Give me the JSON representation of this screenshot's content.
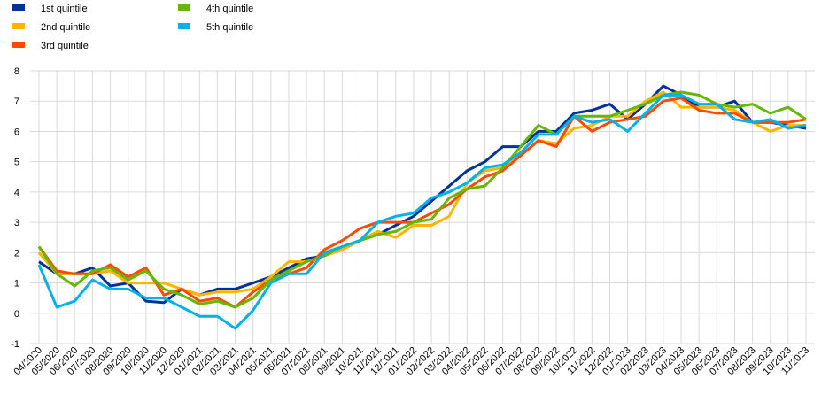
{
  "chart_data": {
    "type": "line",
    "categories": [
      "04/2020",
      "05/2020",
      "06/2020",
      "07/2020",
      "08/2020",
      "09/2020",
      "10/2020",
      "11/2020",
      "12/2020",
      "01/2021",
      "02/2021",
      "03/2021",
      "04/2021",
      "05/2021",
      "06/2021",
      "07/2021",
      "08/2021",
      "09/2021",
      "10/2021",
      "11/2021",
      "12/2021",
      "01/2022",
      "02/2022",
      "03/2022",
      "04/2022",
      "05/2022",
      "06/2022",
      "07/2022",
      "08/2022",
      "09/2022",
      "10/2022",
      "11/2022",
      "12/2022",
      "01/2023",
      "02/2023",
      "03/2023",
      "04/2023",
      "05/2023",
      "06/2023",
      "07/2023",
      "08/2023",
      "09/2023",
      "10/2023",
      "11/2023"
    ],
    "series": [
      {
        "name": "1st quintile",
        "color": "#003299",
        "values": [
          1.7,
          1.3,
          1.3,
          1.5,
          0.9,
          1.0,
          0.4,
          0.35,
          0.8,
          0.6,
          0.8,
          0.8,
          1.0,
          1.2,
          1.5,
          1.8,
          1.9,
          2.1,
          2.4,
          2.6,
          2.9,
          3.2,
          3.7,
          4.2,
          4.7,
          5.0,
          5.5,
          5.5,
          6.0,
          6.0,
          6.6,
          6.7,
          6.9,
          6.4,
          6.9,
          7.5,
          7.2,
          6.8,
          6.8,
          7.0,
          6.3,
          6.3,
          6.2,
          6.1
        ]
      },
      {
        "name": "2nd quintile",
        "color": "#ffb400",
        "values": [
          2.0,
          1.3,
          1.3,
          1.3,
          1.4,
          1.0,
          1.0,
          1.0,
          0.8,
          0.6,
          0.7,
          0.7,
          0.8,
          1.2,
          1.7,
          1.7,
          1.9,
          2.1,
          2.4,
          2.7,
          2.5,
          2.9,
          2.9,
          3.2,
          4.3,
          4.7,
          4.8,
          5.2,
          5.7,
          5.6,
          6.1,
          6.2,
          6.5,
          6.5,
          7.0,
          7.3,
          6.8,
          6.8,
          6.8,
          6.7,
          6.3,
          6.0,
          6.2,
          6.2
        ]
      },
      {
        "name": "3rd quintile",
        "color": "#ff4b00",
        "values": [
          2.2,
          1.4,
          1.3,
          1.3,
          1.6,
          1.2,
          1.5,
          0.6,
          0.8,
          0.4,
          0.5,
          0.2,
          0.7,
          1.1,
          1.3,
          1.5,
          2.1,
          2.4,
          2.8,
          3.0,
          3.0,
          3.0,
          3.3,
          3.6,
          4.1,
          4.5,
          4.7,
          5.2,
          5.7,
          5.5,
          6.5,
          6.0,
          6.3,
          6.4,
          6.5,
          7.0,
          7.1,
          6.7,
          6.6,
          6.6,
          6.3,
          6.3,
          6.3,
          6.4
        ]
      },
      {
        "name": "4th quintile",
        "color": "#65b800",
        "values": [
          2.2,
          1.3,
          0.9,
          1.4,
          1.5,
          1.1,
          1.4,
          0.8,
          0.6,
          0.3,
          0.4,
          0.2,
          0.5,
          1.1,
          1.4,
          1.7,
          1.9,
          2.2,
          2.4,
          2.6,
          2.7,
          3.0,
          3.1,
          3.8,
          4.1,
          4.2,
          4.8,
          5.5,
          6.2,
          5.9,
          6.5,
          6.5,
          6.5,
          6.7,
          6.9,
          7.2,
          7.3,
          7.2,
          6.9,
          6.8,
          6.9,
          6.6,
          6.8,
          6.4
        ]
      },
      {
        "name": "5th quintile",
        "color": "#00b1ea",
        "values": [
          1.6,
          0.2,
          0.4,
          1.1,
          0.8,
          0.8,
          0.5,
          0.5,
          0.2,
          -0.1,
          -0.1,
          -0.5,
          0.1,
          1.0,
          1.3,
          1.3,
          2.0,
          2.2,
          2.4,
          3.0,
          3.2,
          3.3,
          3.8,
          4.0,
          4.3,
          4.8,
          4.9,
          5.3,
          5.9,
          5.9,
          6.5,
          6.3,
          6.4,
          6.0,
          6.6,
          7.2,
          7.2,
          6.9,
          6.9,
          6.4,
          6.3,
          6.4,
          6.1,
          6.2
        ]
      }
    ],
    "ylim": [
      -1,
      8
    ],
    "yticks": [
      -1,
      0,
      1,
      2,
      3,
      4,
      5,
      6,
      7,
      8
    ],
    "grid": true,
    "legend": "top-left"
  }
}
